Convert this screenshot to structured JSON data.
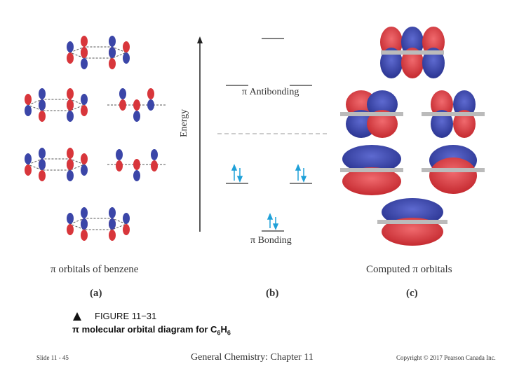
{
  "diagram": {
    "panel_a": {
      "label": "(a)",
      "caption": "π orbitals of benzene"
    },
    "panel_b": {
      "label": "(b)",
      "axis_label": "Energy",
      "antibonding_label": "π Antibonding",
      "bonding_label": "π Bonding"
    },
    "panel_c": {
      "label": "(c)",
      "caption": "Computed π orbitals"
    }
  },
  "figure": {
    "number": "FIGURE 11−31",
    "title_main": "π molecular orbital diagram for C",
    "sub1": "6",
    "h": "H",
    "sub2": "6"
  },
  "footer": {
    "slide": "Slide 11 - 45",
    "course": "General Chemistry: Chapter 11",
    "copyright": "Copyright © 2017 Pearson Canada Inc."
  },
  "colors": {
    "lobe_red": "#d8363b",
    "lobe_blue": "#3b46a8",
    "arrow_blue": "#1fa0d8"
  }
}
